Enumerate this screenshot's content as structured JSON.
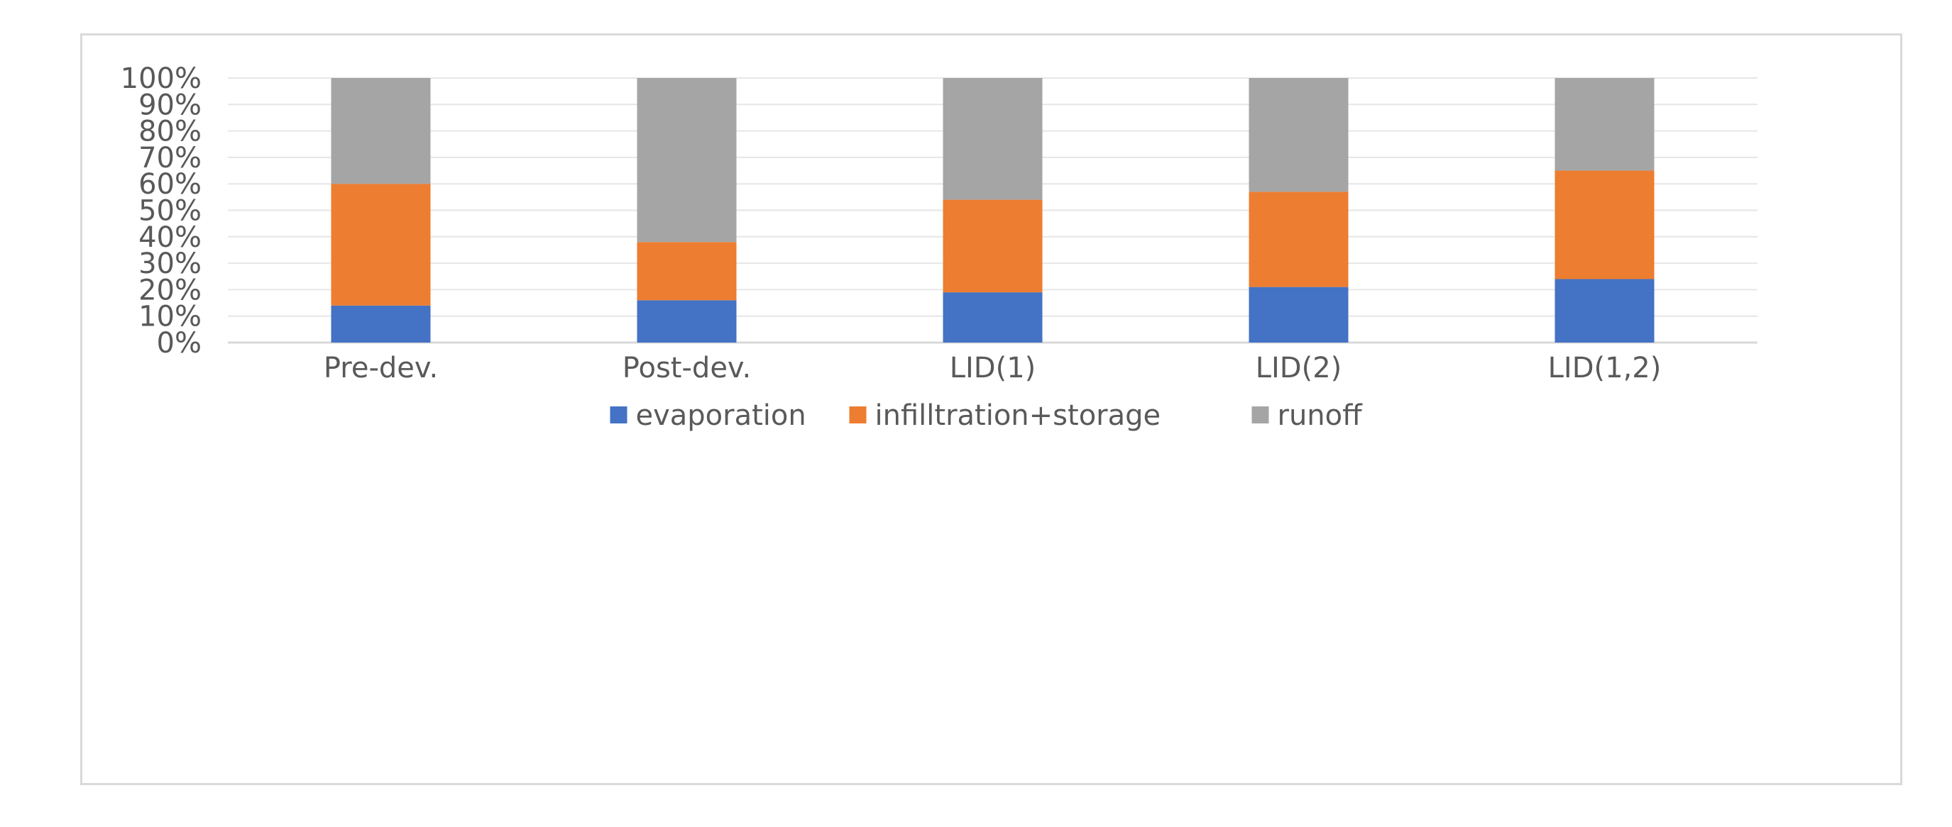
{
  "chart_data": {
    "type": "bar",
    "stacked": true,
    "percent_stacked": true,
    "title": "",
    "xlabel": "",
    "ylabel": "",
    "ylim": [
      0,
      100
    ],
    "y_ticks": [
      "0%",
      "10%",
      "20%",
      "30%",
      "40%",
      "50%",
      "60%",
      "70%",
      "80%",
      "90%",
      "100%"
    ],
    "grid": true,
    "legend_position": "bottom",
    "categories": [
      "Pre-dev.",
      "Post-dev.",
      "LID(1)",
      "LID(2)",
      "LID(1,2)"
    ],
    "series": [
      {
        "name": "evaporation",
        "color": "#4472c4",
        "values": [
          14,
          16,
          19,
          21,
          24
        ]
      },
      {
        "name": "infilltration+storage",
        "color": "#ed7d31",
        "values": [
          46,
          22,
          35,
          36,
          41
        ]
      },
      {
        "name": "runoff",
        "color": "#a5a5a5",
        "values": [
          40,
          62,
          46,
          43,
          35
        ]
      }
    ]
  }
}
